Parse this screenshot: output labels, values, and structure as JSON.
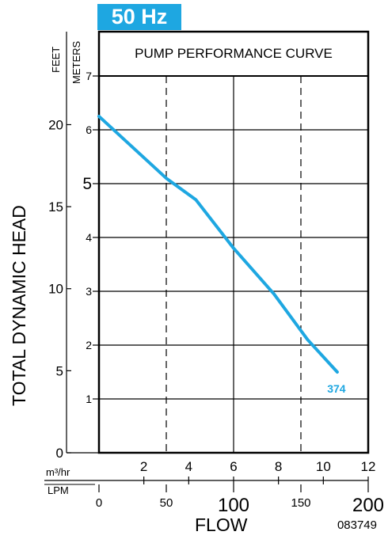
{
  "badge": "50 Hz",
  "chart_data": {
    "type": "line",
    "title": "PUMP PERFORMANCE CURVE",
    "ylabel": "TOTAL DYNAMIC HEAD",
    "xlabel": "FLOW",
    "y_units": {
      "primary": "FEET",
      "secondary": "METERS"
    },
    "x_units": {
      "primary": "m³/hr",
      "secondary": "LPM"
    },
    "meters_ticks": [
      "1",
      "2",
      "3",
      "4",
      "5",
      "6",
      "7"
    ],
    "feet_ticks": [
      "0",
      "5",
      "10",
      "15",
      "20"
    ],
    "m3hr_ticks": [
      "2",
      "4",
      "6",
      "8",
      "10",
      "12"
    ],
    "lpm_ticks": [
      "0",
      "50",
      "100",
      "150",
      "200"
    ],
    "xlim_lpm": [
      0,
      200
    ],
    "ylim_meters": [
      0,
      7
    ],
    "grid": true,
    "series": [
      {
        "name": "374",
        "color": "#1ea7e1",
        "x_lpm": [
          0,
          50,
          72,
          100,
          130,
          155,
          177
        ],
        "y_meters": [
          6.25,
          5.1,
          4.7,
          3.8,
          2.95,
          2.1,
          1.5
        ]
      }
    ]
  },
  "doc_code": "083749"
}
